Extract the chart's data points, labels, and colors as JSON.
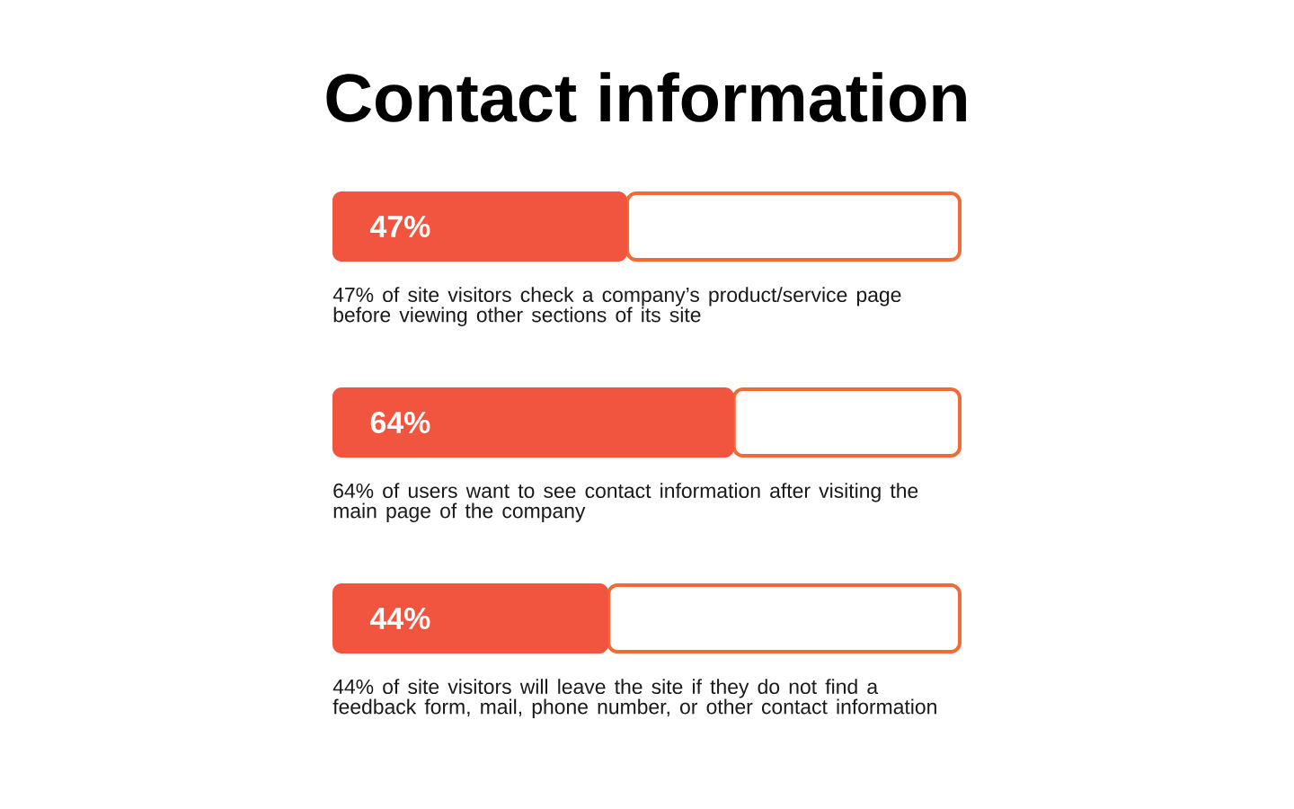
{
  "chart_data": {
    "type": "bar",
    "orientation": "horizontal",
    "stacked": true,
    "title": "Contact information",
    "categories": [
      "47% of site visitors check a company’s product/service page before viewing other sections of its site",
      "64% of users want to see contact information after visiting the main page of the company",
      "44% of site visitors will leave the site if they do not find a feedback form, mail, phone number, or other contact information"
    ],
    "series": [
      {
        "color": "#f1553f",
        "values": [
          47,
          64,
          44
        ],
        "value_labels": [
          "47%",
          "64%",
          "44%"
        ]
      },
      {
        "color": "#f26a35",
        "values": [
          53,
          36,
          56
        ]
      }
    ],
    "xlim": [
      0,
      100
    ]
  }
}
